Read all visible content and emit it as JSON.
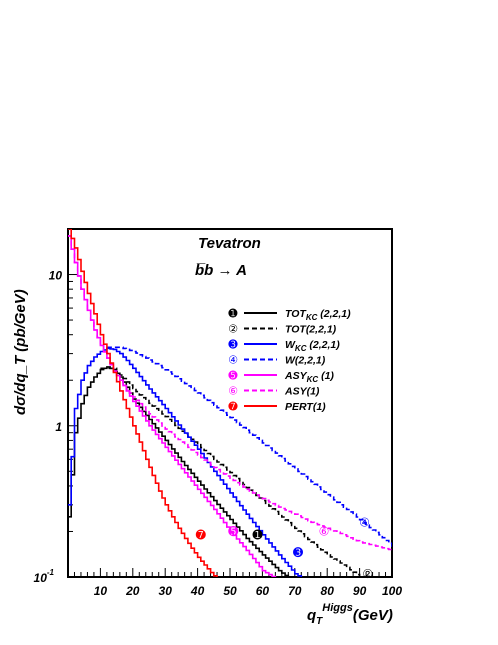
{
  "chart_data": {
    "type": "line",
    "title_lines": [
      "Tevatron",
      "b̅b → A"
    ],
    "xlabel_main": "q",
    "xlabel_sub": "T",
    "xlabel_sup": "Higgs",
    "xlabel_tail": "(GeV)",
    "ylabel": "dσ/dq_T (pb/GeV)",
    "xlim": [
      0,
      100
    ],
    "ylim": [
      0.1,
      20
    ],
    "yscale": "log",
    "x_ticks": [
      10,
      20,
      30,
      40,
      50,
      60,
      70,
      80,
      90,
      100
    ],
    "x_tick_labels": [
      "10",
      "20",
      "30",
      "40",
      "50",
      "60",
      "70",
      "80",
      "90",
      "100"
    ],
    "y_ticks": [
      {
        "value": 10,
        "label": "10",
        "sup": ""
      },
      {
        "value": 1,
        "label": "1",
        "sup": ""
      },
      {
        "value": 0.1,
        "label": "10",
        "sup": "-1"
      }
    ],
    "legend_position": "upper-right",
    "series": [
      {
        "marker": "➊",
        "label_main": "TOT",
        "label_sub": "KC",
        "label_tail": " (2,2,1)",
        "color": "#000000",
        "dash": "solid",
        "marker_x": 58.5,
        "marker_y": 0.19,
        "x": [
          0,
          2,
          4,
          6,
          8,
          10,
          12,
          14,
          16,
          18,
          20,
          25,
          30,
          35,
          40,
          45,
          50,
          55,
          60,
          65,
          70,
          75
        ],
        "y": [
          0.25,
          0.9,
          1.4,
          1.8,
          2.1,
          2.35,
          2.45,
          2.35,
          2.1,
          1.8,
          1.5,
          1.1,
          0.8,
          0.58,
          0.43,
          0.32,
          0.24,
          0.18,
          0.14,
          0.11,
          0.092,
          0.085
        ]
      },
      {
        "marker": "②",
        "label_main": "TOT",
        "label_sub": "",
        "label_tail": "(2,2,1)",
        "color": "#000000",
        "dash": "dashed",
        "marker_x": 92.5,
        "marker_y": 0.105,
        "x": [
          10,
          14,
          18,
          22,
          26,
          30,
          35,
          40,
          45,
          50,
          55,
          60,
          65,
          70,
          75,
          80,
          85,
          90,
          95
        ],
        "y": [
          2.4,
          2.4,
          1.95,
          1.6,
          1.35,
          1.15,
          0.92,
          0.75,
          0.6,
          0.49,
          0.39,
          0.32,
          0.26,
          0.21,
          0.17,
          0.14,
          0.12,
          0.1,
          0.09
        ]
      },
      {
        "marker": "➌",
        "label_main": "W",
        "label_sub": "KC",
        "label_tail": " (2,2,1)",
        "color": "#0000ff",
        "dash": "solid",
        "marker_x": 71,
        "marker_y": 0.145,
        "x": [
          0,
          2,
          4,
          6,
          8,
          10,
          12,
          14,
          16,
          18,
          20,
          25,
          30,
          35,
          40,
          45,
          50,
          55,
          60,
          65,
          70,
          75
        ],
        "y": [
          0.3,
          1.3,
          2.0,
          2.5,
          2.85,
          3.1,
          3.25,
          3.2,
          3.0,
          2.7,
          2.4,
          1.75,
          1.3,
          0.95,
          0.7,
          0.5,
          0.36,
          0.26,
          0.19,
          0.14,
          0.105,
          0.09
        ]
      },
      {
        "marker": "④",
        "label_main": "W",
        "label_sub": "",
        "label_tail": "(2,2,1)",
        "color": "#0000ff",
        "dash": "dashed",
        "marker_x": 91.5,
        "marker_y": 0.23,
        "x": [
          12,
          16,
          20,
          24,
          28,
          32,
          36,
          40,
          44,
          48,
          52,
          56,
          60,
          64,
          68,
          72,
          76,
          80,
          84,
          88,
          92,
          96,
          100
        ],
        "y": [
          3.3,
          3.3,
          3.1,
          2.8,
          2.5,
          2.2,
          1.9,
          1.65,
          1.42,
          1.22,
          1.05,
          0.9,
          0.77,
          0.66,
          0.56,
          0.48,
          0.41,
          0.35,
          0.3,
          0.26,
          0.22,
          0.19,
          0.16
        ]
      },
      {
        "marker": "➎",
        "label_main": "ASY",
        "label_sub": "KC",
        "label_tail": " (1)",
        "color": "#ff00ff",
        "dash": "solid",
        "marker_x": 51,
        "marker_y": 0.2,
        "x": [
          0,
          2,
          4,
          6,
          8,
          10,
          12,
          14,
          16,
          18,
          20,
          25,
          30,
          35,
          40,
          45,
          50,
          55,
          60,
          65
        ],
        "y": [
          18,
          12,
          8,
          5.8,
          4.3,
          3.4,
          2.8,
          2.3,
          2.0,
          1.7,
          1.45,
          1.0,
          0.72,
          0.52,
          0.38,
          0.28,
          0.2,
          0.15,
          0.11,
          0.095
        ]
      },
      {
        "marker": "⑥",
        "label_main": "ASY",
        "label_sub": "",
        "label_tail": "(1)",
        "color": "#ff00ff",
        "dash": "dashed",
        "marker_x": 79,
        "marker_y": 0.2,
        "x": [
          0,
          2,
          4,
          6,
          8,
          10,
          12,
          14,
          16,
          18,
          20,
          25,
          30,
          35,
          40,
          45,
          50,
          55,
          60,
          65,
          70,
          75,
          80,
          85,
          90,
          95,
          100
        ],
        "y": [
          18,
          12,
          8,
          5.8,
          4.3,
          3.4,
          2.8,
          2.3,
          2.0,
          1.75,
          1.55,
          1.2,
          0.95,
          0.78,
          0.64,
          0.53,
          0.45,
          0.38,
          0.33,
          0.29,
          0.26,
          0.23,
          0.21,
          0.19,
          0.17,
          0.16,
          0.15
        ]
      },
      {
        "marker": "➐",
        "label_main": "PERT",
        "label_sub": "",
        "label_tail": "(1)",
        "color": "#ff0000",
        "dash": "solid",
        "marker_x": 41,
        "marker_y": 0.19,
        "x": [
          0,
          2,
          4,
          6,
          8,
          10,
          12,
          14,
          16,
          18,
          20,
          22,
          24,
          26,
          28,
          30,
          32,
          34,
          36,
          38,
          40,
          42,
          44,
          46,
          48
        ],
        "y": [
          20,
          15,
          10.5,
          7.5,
          5.5,
          4.0,
          3.0,
          2.25,
          1.7,
          1.3,
          1.0,
          0.78,
          0.6,
          0.47,
          0.37,
          0.3,
          0.25,
          0.21,
          0.18,
          0.155,
          0.135,
          0.12,
          0.107,
          0.097,
          0.09
        ]
      }
    ]
  },
  "colors": {
    "frame": "#000000",
    "background": "#ffffff"
  }
}
